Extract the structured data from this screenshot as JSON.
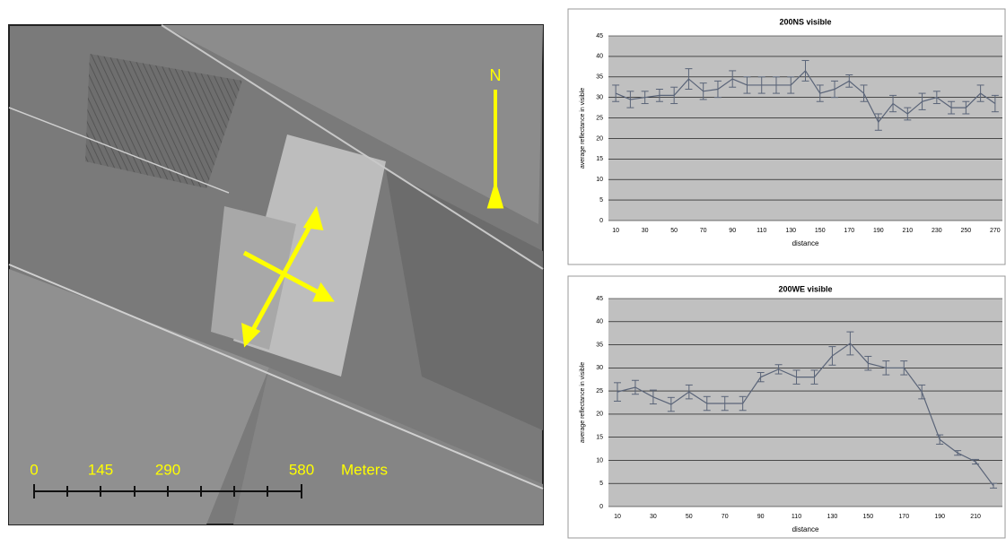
{
  "image": {
    "north_label": "N",
    "scale_bar": {
      "ticks": [
        "0",
        "145",
        "290",
        "580"
      ],
      "unit": "Meters"
    }
  },
  "chart_data": [
    {
      "type": "line",
      "title": "200NS visible",
      "x_label": "distance",
      "y_label": "average reflectance in visible",
      "categories": [
        "10",
        null,
        "30",
        null,
        "50",
        null,
        "70",
        null,
        "90",
        null,
        "110",
        null,
        "130",
        null,
        "150",
        null,
        "170",
        null,
        "190",
        null,
        "210",
        null,
        "230",
        null,
        "250",
        null,
        "270"
      ],
      "values": [
        31,
        29.5,
        30,
        30.5,
        30.5,
        34.5,
        31.5,
        32,
        34.5,
        33,
        33,
        33,
        33,
        36.5,
        31,
        32,
        34,
        31,
        24,
        28.5,
        26,
        29,
        30,
        27.5,
        27.5,
        31,
        28.5
      ],
      "errors": [
        2,
        2,
        1.5,
        1.5,
        2,
        2.5,
        2,
        2,
        2,
        2,
        2,
        2,
        2,
        2.5,
        2,
        2,
        1.5,
        2,
        2,
        2,
        1.5,
        2,
        1.5,
        1.5,
        1.5,
        2,
        2
      ],
      "color": "#5a6478",
      "ylim": [
        0,
        45
      ],
      "yticks": [
        0,
        5,
        10,
        15,
        20,
        25,
        30,
        35,
        40,
        45
      ],
      "grid": true
    },
    {
      "type": "line",
      "title": "200WE visible",
      "x_label": "distance",
      "y_label": "average reflectance in visible",
      "categories": [
        "10",
        null,
        "30",
        null,
        "50",
        null,
        "70",
        null,
        "90",
        null,
        "110",
        null,
        "130",
        null,
        "150",
        null,
        "170",
        null,
        "190",
        null,
        "210",
        null
      ],
      "values": [
        24.8,
        25.8,
        23.7,
        22.1,
        24.8,
        22.3,
        22.3,
        22.3,
        28,
        29.7,
        28,
        28,
        32.6,
        35.3,
        31,
        30,
        30,
        24.8,
        14.5,
        11.6,
        9.7,
        4.5
      ],
      "errors": [
        2,
        1.5,
        1.5,
        1.5,
        1.5,
        1.5,
        1.5,
        1.5,
        1,
        1,
        1.5,
        1.5,
        2,
        2.5,
        1.5,
        1.5,
        1.5,
        1.5,
        1,
        0.5,
        0.5,
        0.5
      ],
      "color": "#5a6478",
      "ylim": [
        0,
        45
      ],
      "yticks": [
        0,
        5,
        10,
        15,
        20,
        25,
        30,
        35,
        40,
        45
      ],
      "grid": true
    }
  ]
}
